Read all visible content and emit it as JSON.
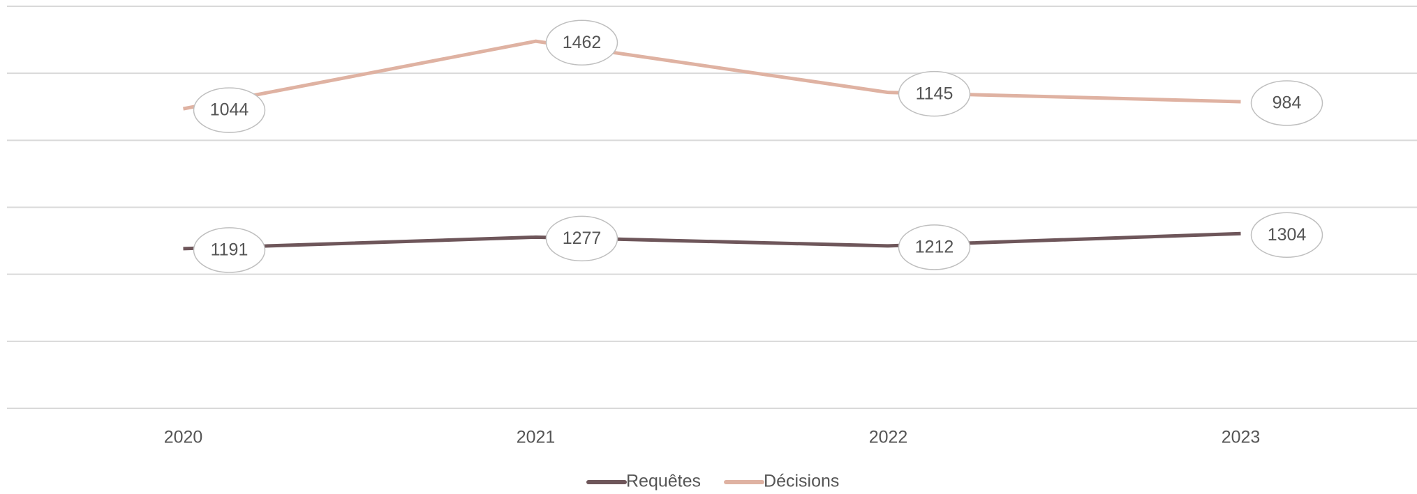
{
  "chart_data": {
    "type": "line",
    "stacked": true,
    "categories": [
      "2020",
      "2021",
      "2022",
      "2023"
    ],
    "series": [
      {
        "name": "Requêtes",
        "color": "#6e565a",
        "values": [
          1191,
          1277,
          1212,
          1304
        ]
      },
      {
        "name": "Décisions",
        "color": "#dfb2a2",
        "values": [
          1044,
          1462,
          1145,
          984
        ]
      }
    ],
    "ylim": [
      0,
      3000
    ],
    "yticks": [
      0,
      500,
      1000,
      1500,
      2000,
      2500,
      3000
    ],
    "grid": true,
    "legend": "bottom"
  }
}
